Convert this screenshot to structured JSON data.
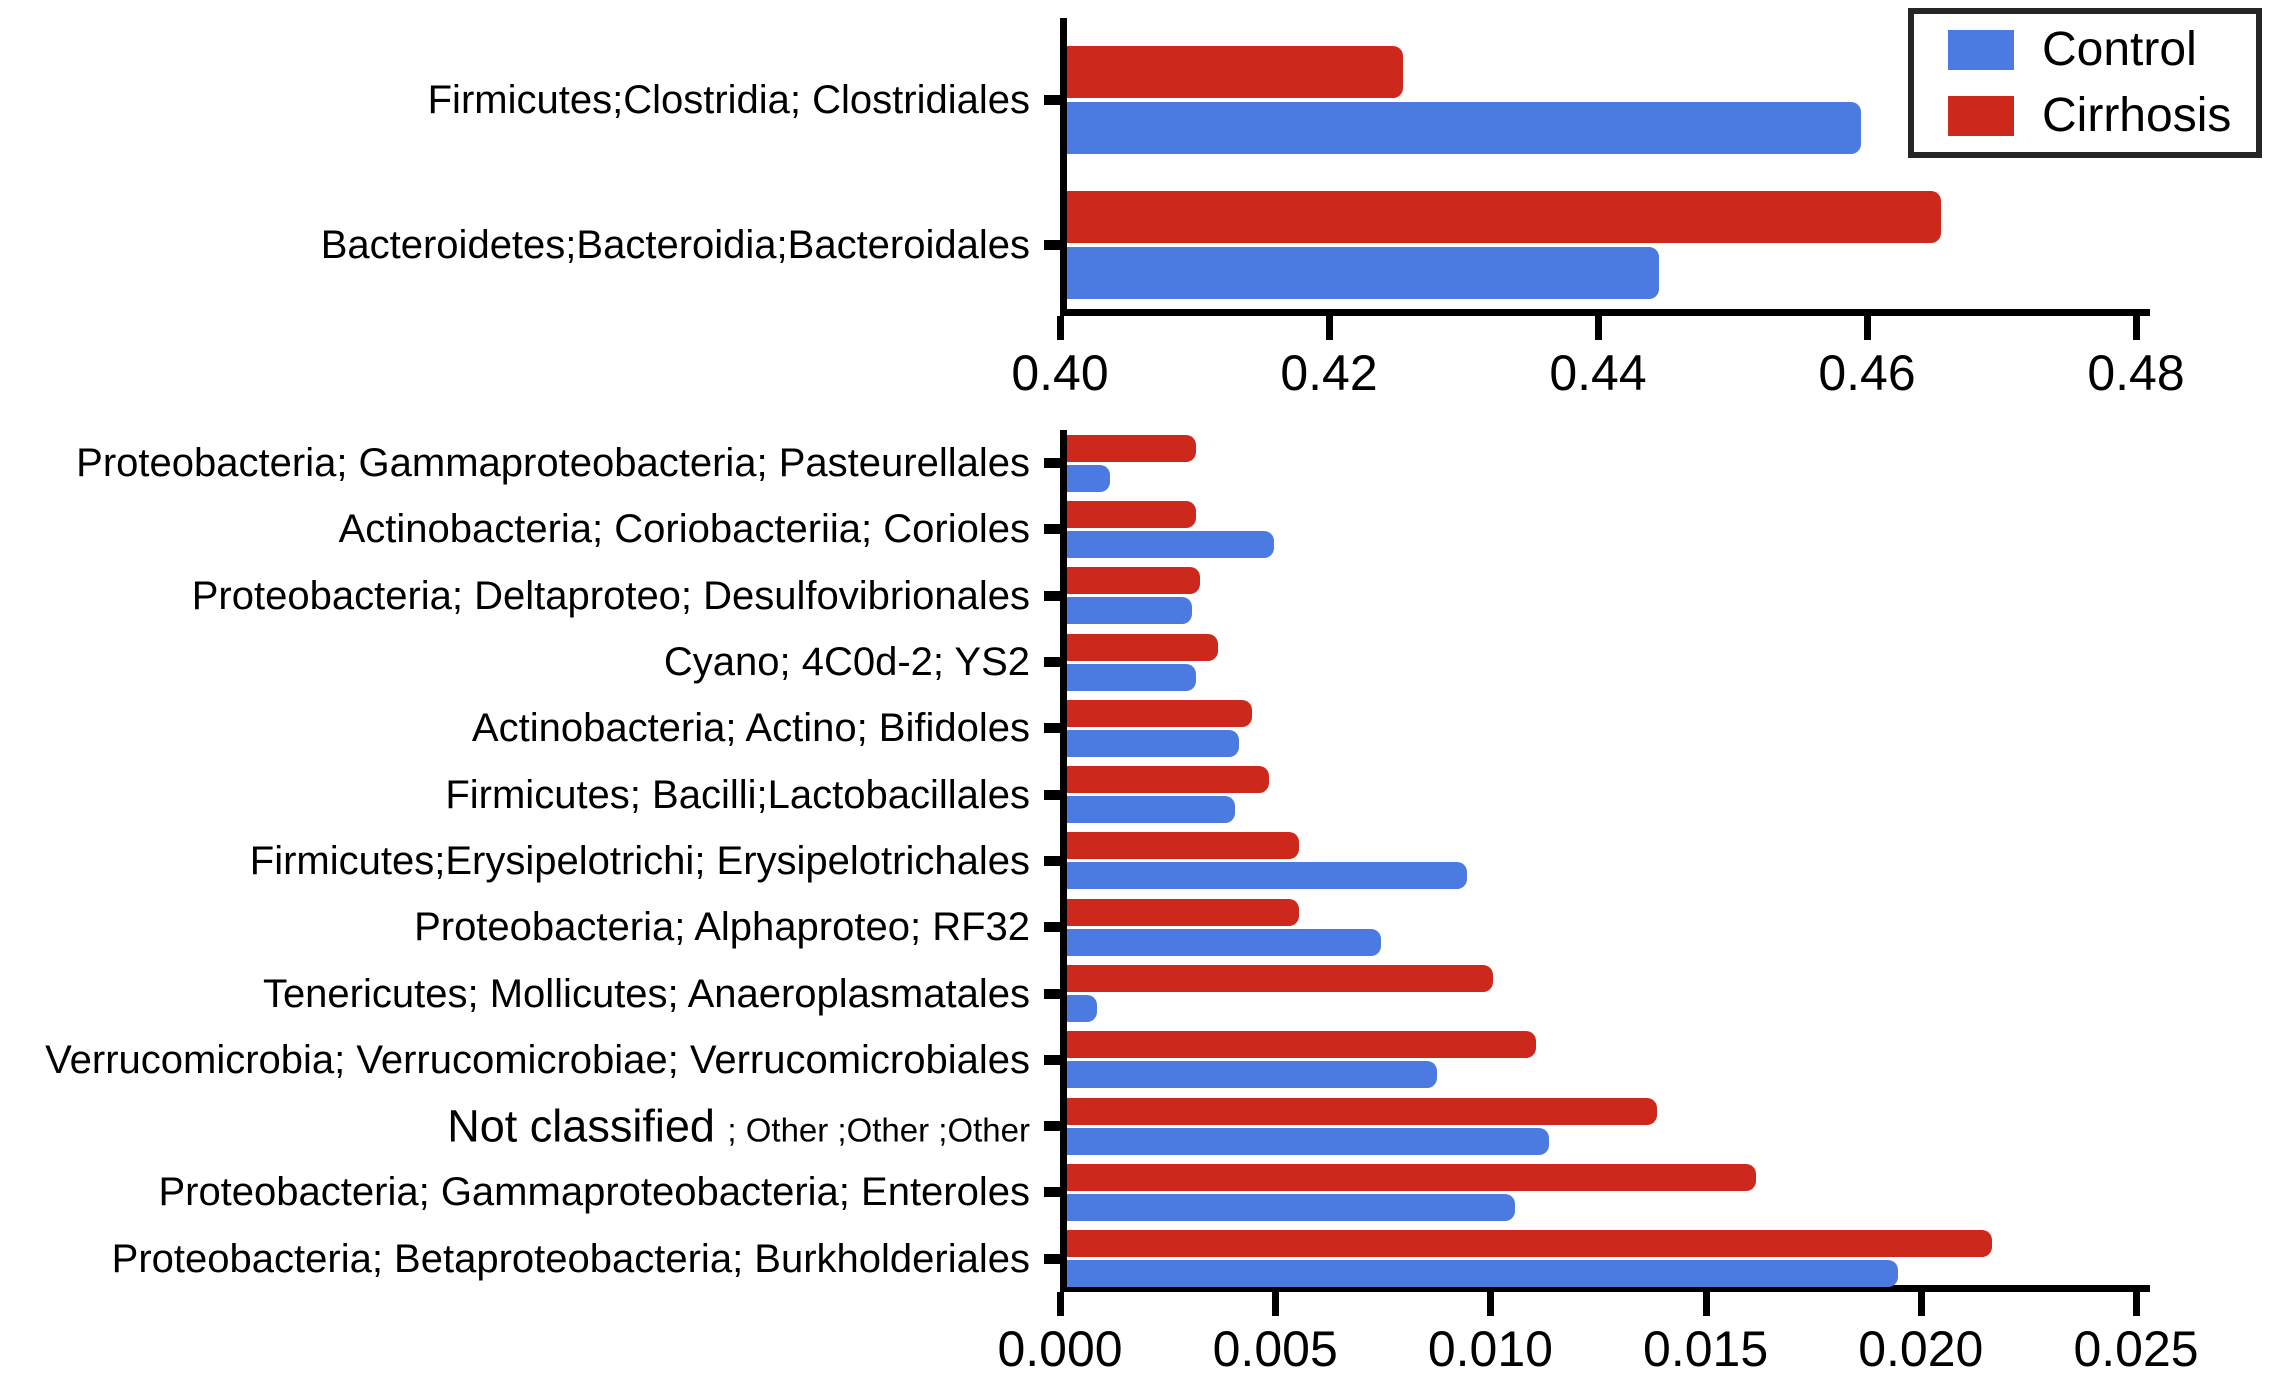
{
  "legend": {
    "items": [
      {
        "label": "Control",
        "color": "#4b7be0"
      },
      {
        "label": "Cirrhosis",
        "color": "#cc281c"
      }
    ]
  },
  "colors": {
    "control_blue": "#4b7be0",
    "cirrhosis_red": "#cc281c",
    "axis_black": "#000000"
  },
  "chart_data": [
    {
      "id": "top",
      "type": "bar",
      "orientation": "horizontal-grouped",
      "title": "",
      "xlabel": "",
      "ylabel": "",
      "grid": false,
      "legend_position": "top-right",
      "categories": [
        "Firmicutes;Clostridia; Clostridiales",
        "Bacteroidetes;Bacteroidia;Bacteroidales"
      ],
      "series": [
        {
          "name": "Control",
          "color": "#4b7be0",
          "values": [
            0.459,
            0.444
          ]
        },
        {
          "name": "Cirrhosis",
          "color": "#cc281c",
          "values": [
            0.425,
            0.465
          ]
        }
      ],
      "row_order_top_to_bottom": [
        "Cirrhosis",
        "Control"
      ],
      "xlim": [
        0.4,
        0.48
      ],
      "xticks": [
        0.4,
        0.42,
        0.44,
        0.46,
        0.48
      ],
      "xtick_labels": [
        "0.40",
        "0.42",
        "0.44",
        "0.46",
        "0.48"
      ]
    },
    {
      "id": "bottom",
      "type": "bar",
      "orientation": "horizontal-grouped",
      "title": "",
      "xlabel": "",
      "ylabel": "",
      "grid": false,
      "categories": [
        "Proteobacteria; Gammaproteobacteria; Pasteurellales",
        "Actinobacteria; Coriobacteriia; Corioles",
        "Proteobacteria; Deltaproteo; Desulfovibrionales",
        "Cyano; 4C0d-2; YS2",
        "Actinobacteria; Actino; Bifidoles",
        "Firmicutes; Bacilli;Lactobacillales",
        "Firmicutes;Erysipelotrichi; Erysipelotrichales",
        "Proteobacteria; Alphaproteo; RF32",
        "Tenericutes; Mollicutes; Anaeroplasmatales",
        "Verrucomicrobia; Verrucomicrobiae; Verrucomicrobiales",
        "Not classified ; Other ;Other ;Other",
        "Proteobacteria; Gammaproteobacteria; Enteroles",
        "Proteobacteria; Betaproteobacteria; Burkholderiales"
      ],
      "categories_rich": [
        {
          "main": "Proteobacteria; Gammaproteobacteria; Pasteurellales",
          "small": ""
        },
        {
          "main": "Actinobacteria; Coriobacteriia; Corioles",
          "small": ""
        },
        {
          "main": "Proteobacteria; Deltaproteo; Desulfovibrionales",
          "small": ""
        },
        {
          "main": "Cyano; 4C0d-2; YS2",
          "small": ""
        },
        {
          "main": "Actinobacteria; Actino; Bifidoles",
          "small": ""
        },
        {
          "main": "Firmicutes; Bacilli;Lactobacillales",
          "small": ""
        },
        {
          "main": "Firmicutes;Erysipelotrichi; Erysipelotrichales",
          "small": ""
        },
        {
          "main": "Proteobacteria; Alphaproteo; RF32",
          "small": ""
        },
        {
          "main": "Tenericutes; Mollicutes; Anaeroplasmatales",
          "small": ""
        },
        {
          "main": "Verrucomicrobia; Verrucomicrobiae; Verrucomicrobiales",
          "small": ""
        },
        {
          "main": "Not classified ",
          "small": "; Other ;Other ;Other"
        },
        {
          "main": "Proteobacteria; Gammaproteobacteria; Enteroles",
          "small": ""
        },
        {
          "main": "Proteobacteria; Betaproteobacteria; Burkholderiales",
          "small": ""
        }
      ],
      "series": [
        {
          "name": "Control",
          "color": "#4b7be0",
          "values": [
            0.001,
            0.0048,
            0.0029,
            0.003,
            0.004,
            0.0039,
            0.0093,
            0.0073,
            0.0007,
            0.0086,
            0.0112,
            0.0104,
            0.0193
          ]
        },
        {
          "name": "Cirrhosis",
          "color": "#cc281c",
          "values": [
            0.003,
            0.003,
            0.0031,
            0.0035,
            0.0043,
            0.0047,
            0.0054,
            0.0054,
            0.0099,
            0.0109,
            0.0137,
            0.016,
            0.0215
          ]
        }
      ],
      "row_order_top_to_bottom": [
        "Cirrhosis",
        "Control"
      ],
      "xlim": [
        0.0,
        0.025
      ],
      "xticks": [
        0.0,
        0.005,
        0.01,
        0.015,
        0.02,
        0.025
      ],
      "xtick_labels": [
        "0.000",
        "0.005",
        "0.010",
        "0.015",
        "0.020",
        "0.025"
      ]
    }
  ]
}
